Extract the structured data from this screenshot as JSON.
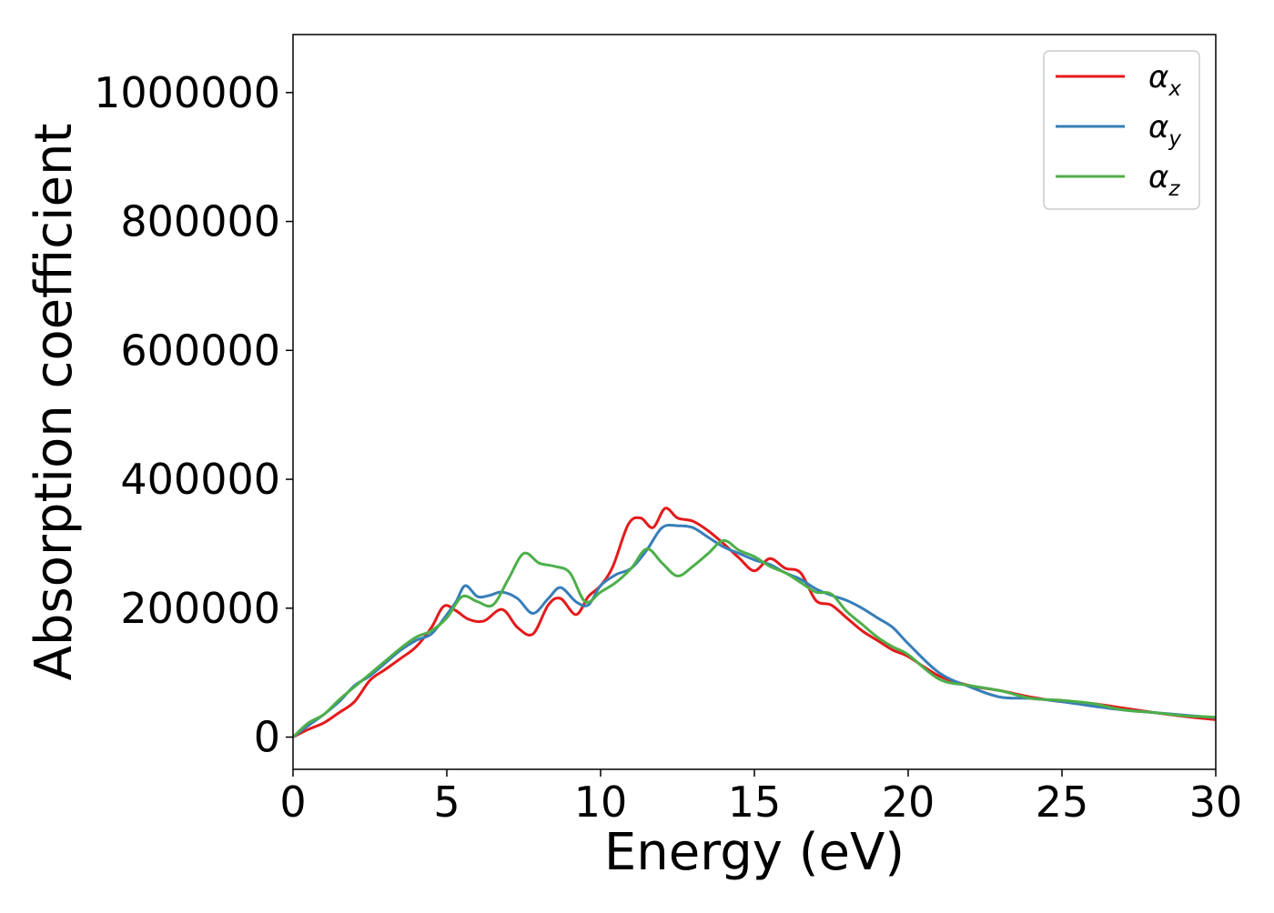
{
  "chart_data": {
    "type": "line",
    "title": "",
    "xlabel": "Energy (eV)",
    "ylabel": "Absorption coefficient",
    "xlim": [
      0,
      30
    ],
    "ylim": [
      -50000,
      1090000
    ],
    "x_ticks": [
      "0",
      "5",
      "10",
      "15",
      "20",
      "25",
      "30"
    ],
    "x_tick_values": [
      0,
      5,
      10,
      15,
      20,
      25,
      30
    ],
    "y_ticks": [
      "0",
      "200000",
      "400000",
      "600000",
      "800000",
      "1000000"
    ],
    "y_tick_values": [
      0,
      200000,
      400000,
      600000,
      800000,
      1000000
    ],
    "grid": false,
    "legend_position": "top-right",
    "series": [
      {
        "name": "α",
        "subscript": "x",
        "color": "#e41a1c",
        "x": [
          0,
          0.5,
          1,
          1.5,
          2,
          2.5,
          3,
          3.5,
          4,
          4.5,
          4.9,
          5.3,
          5.7,
          6.2,
          6.8,
          7.3,
          7.8,
          8.3,
          8.7,
          9.2,
          9.6,
          10,
          10.4,
          10.9,
          11.3,
          11.7,
          12.1,
          12.5,
          13,
          13.5,
          14,
          14.5,
          15,
          15.5,
          16,
          16.5,
          17,
          17.5,
          18,
          18.5,
          19,
          19.5,
          20,
          21,
          22,
          23,
          24,
          25,
          26,
          27,
          28,
          29,
          30
        ],
        "values": [
          0,
          12000,
          22000,
          38000,
          55000,
          88000,
          105000,
          122000,
          140000,
          170000,
          203000,
          196000,
          183000,
          180000,
          198000,
          170000,
          160000,
          205000,
          215000,
          190000,
          218000,
          235000,
          265000,
          330000,
          340000,
          325000,
          355000,
          340000,
          335000,
          320000,
          300000,
          278000,
          258000,
          277000,
          262000,
          255000,
          212000,
          205000,
          185000,
          165000,
          150000,
          135000,
          125000,
          95000,
          80000,
          72000,
          62000,
          55000,
          52000,
          45000,
          38000,
          32000,
          27000
        ]
      },
      {
        "name": "α",
        "subscript": "y",
        "color": "#377eb8",
        "x": [
          0,
          0.5,
          1,
          1.5,
          2,
          2.5,
          3,
          3.5,
          4,
          4.5,
          5,
          5.3,
          5.6,
          6,
          6.4,
          6.8,
          7.3,
          7.8,
          8.3,
          8.7,
          9.2,
          9.6,
          10,
          10.5,
          11,
          11.5,
          12,
          12.5,
          13,
          13.5,
          14,
          14.5,
          15,
          15.5,
          16,
          16.5,
          17,
          17.5,
          18,
          18.5,
          19,
          19.5,
          20,
          21,
          22,
          23,
          24,
          25,
          26,
          27,
          28,
          29,
          30
        ],
        "values": [
          0,
          18000,
          35000,
          55000,
          80000,
          95000,
          115000,
          135000,
          150000,
          160000,
          190000,
          210000,
          235000,
          218000,
          220000,
          225000,
          215000,
          192000,
          215000,
          232000,
          210000,
          205000,
          235000,
          252000,
          262000,
          290000,
          325000,
          328000,
          325000,
          310000,
          295000,
          285000,
          275000,
          268000,
          255000,
          245000,
          230000,
          220000,
          212000,
          200000,
          185000,
          170000,
          145000,
          100000,
          78000,
          62000,
          60000,
          55000,
          48000,
          42000,
          38000,
          34000,
          30000
        ]
      },
      {
        "name": "α",
        "subscript": "z",
        "color": "#4daf4a",
        "x": [
          0,
          0.5,
          1,
          1.5,
          2,
          2.5,
          3,
          3.5,
          4,
          4.5,
          5,
          5.5,
          6,
          6.5,
          7,
          7.5,
          8,
          8.5,
          9,
          9.5,
          10,
          10.5,
          11,
          11.5,
          12,
          12.5,
          13,
          13.5,
          14,
          14.5,
          15,
          15.5,
          16,
          16.5,
          17,
          17.5,
          18,
          18.5,
          19,
          19.5,
          20,
          21,
          22,
          23,
          24,
          25,
          26,
          27,
          28,
          29,
          30
        ],
        "values": [
          0,
          22000,
          35000,
          58000,
          78000,
          98000,
          118000,
          138000,
          155000,
          165000,
          185000,
          218000,
          210000,
          205000,
          245000,
          285000,
          270000,
          265000,
          255000,
          210000,
          225000,
          240000,
          262000,
          292000,
          270000,
          250000,
          265000,
          285000,
          305000,
          290000,
          280000,
          265000,
          255000,
          240000,
          225000,
          222000,
          195000,
          175000,
          155000,
          140000,
          128000,
          90000,
          80000,
          72000,
          60000,
          57000,
          52000,
          42000,
          38000,
          33000,
          31000
        ]
      }
    ]
  }
}
